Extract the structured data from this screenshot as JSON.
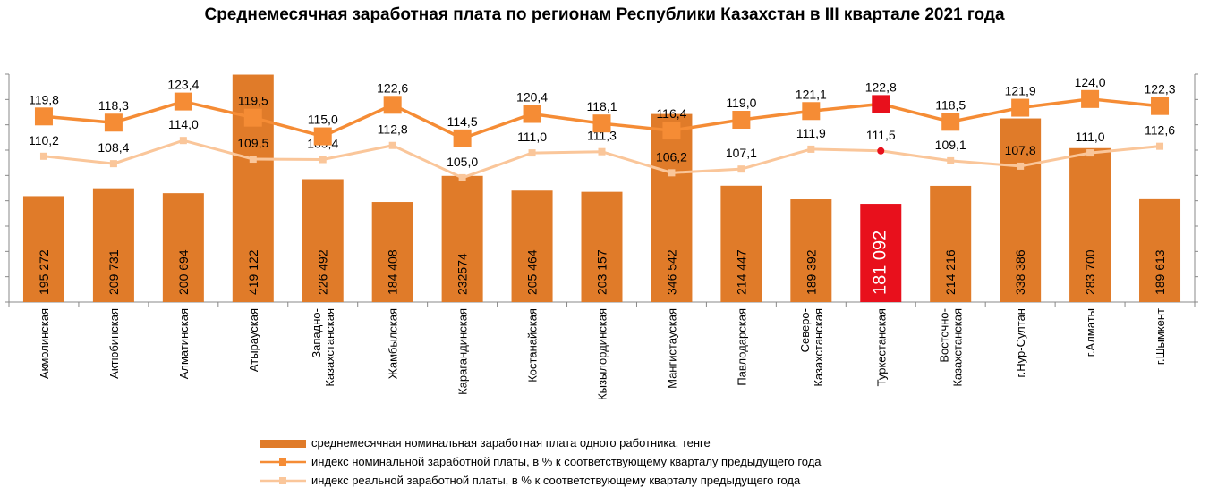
{
  "chart_data": {
    "type": "bar",
    "title": "Среднемесячная заработная  плата по регионам Республики Казахстан в III квартале 2021 года",
    "categories": [
      "Акмолинская",
      "Актюбинская",
      "Алматинская",
      "Атырауская",
      "Западно-Казахстанская",
      "Жамбылская",
      "Карагандинская",
      "Костанайская",
      "Кызылординская",
      "Мангистауская",
      "Павлодарская",
      "Северо-Казахстанская",
      "Туркестанская",
      "Восточно-Казахстанская",
      "г.Нур-Султан",
      "г.Алматы",
      "г.Шымкент"
    ],
    "category_lines": [
      [
        "Акмолинская"
      ],
      [
        "Актюбинская"
      ],
      [
        "Алматинская"
      ],
      [
        "Атырауская"
      ],
      [
        "Западно-",
        "Казахстанская"
      ],
      [
        "Жамбылская"
      ],
      [
        "Карагандинская"
      ],
      [
        "Костанайская"
      ],
      [
        "Кызылординская"
      ],
      [
        "Мангистауская"
      ],
      [
        "Павлодарская"
      ],
      [
        "Северо-",
        "Казахстанская"
      ],
      [
        "Туркестанская"
      ],
      [
        "Восточно-",
        "Казахстанская"
      ],
      [
        "г.Нур-Султан"
      ],
      [
        "г.Алматы"
      ],
      [
        "г.Шымкент"
      ]
    ],
    "bar_labels": [
      "195 272",
      "209 731",
      "200 694",
      "419 122",
      "226 492",
      "184 408",
      "232574",
      "205 464",
      "203 157",
      "346 542",
      "214 447",
      "189 392",
      "181 092",
      "214 216",
      "338 386",
      "283 700",
      "189 613"
    ],
    "series": [
      {
        "name": "среднемесячная номинальная  заработная плата одного работника, тенге",
        "kind": "bar",
        "values": [
          195272,
          209731,
          200694,
          419122,
          226492,
          184408,
          232574,
          205464,
          203157,
          346542,
          214447,
          189392,
          181092,
          214216,
          338386,
          283700,
          189613
        ]
      },
      {
        "name": "индекс номинальной заработной платы, в % к соответствующему кварталу предыдущего года",
        "kind": "line",
        "values": [
          119.8,
          118.3,
          123.4,
          119.5,
          115.0,
          122.6,
          114.5,
          120.4,
          118.1,
          116.4,
          119.0,
          121.1,
          122.8,
          118.5,
          121.9,
          124.0,
          122.3
        ],
        "labels": [
          "119,8",
          "118,3",
          "123,4",
          "119,5",
          "115,0",
          "122,6",
          "114,5",
          "120,4",
          "118,1",
          "116,4",
          "119,0",
          "121,1",
          "122,8",
          "118,5",
          "121,9",
          "124,0",
          "122,3"
        ]
      },
      {
        "name": "индекс реальной заработной платы, в % к соответствующему кварталу предыдущего года",
        "kind": "line",
        "values": [
          110.2,
          108.4,
          114.0,
          109.5,
          109.4,
          112.8,
          105.0,
          111.0,
          111.3,
          106.2,
          107.1,
          111.9,
          111.5,
          109.1,
          107.8,
          111.0,
          112.6
        ],
        "labels": [
          "110,2",
          "108,4",
          "114,0",
          "109,5",
          "109,4",
          "112,8",
          "105,0",
          "111,0",
          "111,3",
          "106,2",
          "107,1",
          "111,9",
          "111,5",
          "109,1",
          "107,8",
          "111,0",
          "112,6"
        ]
      }
    ],
    "highlight_index": 12,
    "colors": {
      "bar": "#E07B29",
      "nominal": "#F58C35",
      "real": "#FAC69A",
      "highlight": "#E8101C",
      "axis": "#888888",
      "grid": "#C8C8C8"
    },
    "bar_ylim": [
      0,
      420000
    ],
    "line_ylim": [
      75,
      130
    ],
    "grid": false,
    "legend_position": "bottom"
  }
}
